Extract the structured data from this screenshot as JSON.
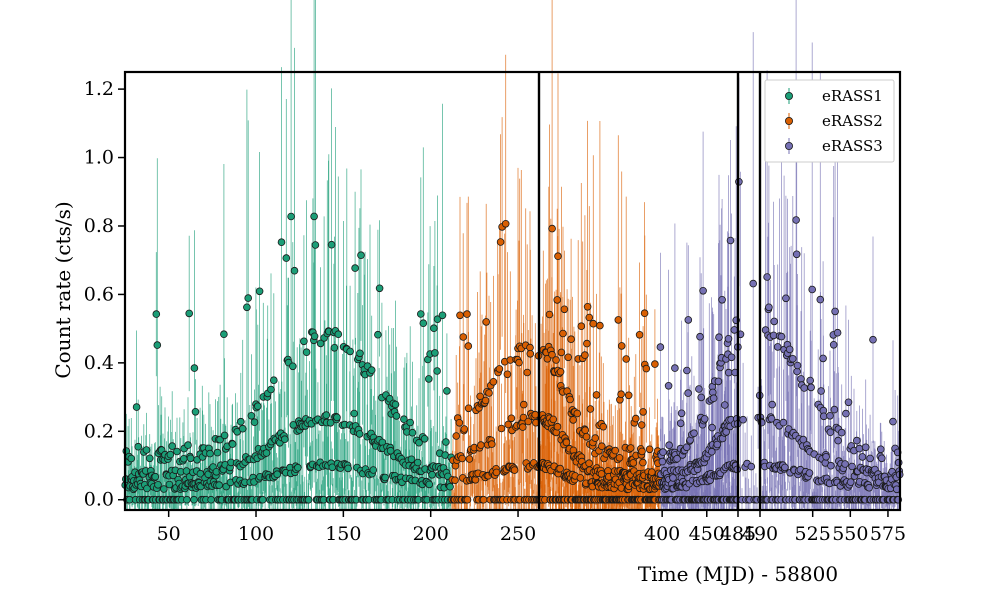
{
  "chart_data": {
    "type": "scatter",
    "title": "",
    "xlabel": "Time (MJD) - 58800",
    "ylabel": "Count rate (cts/s)",
    "ylim": [
      -0.03,
      1.25
    ],
    "yticks": [
      0.0,
      0.2,
      0.4,
      0.6,
      0.8,
      1.0,
      1.2
    ],
    "y_tick_labels": [
      "0.0",
      "0.2",
      "0.4",
      "0.6",
      "0.8",
      "1.0",
      "1.2"
    ],
    "broken_x_axis": true,
    "x_segments": [
      {
        "xlim": [
          25,
          262
        ],
        "ticks": [
          50,
          100,
          150,
          200,
          250
        ],
        "tick_labels": [
          "50",
          "100",
          "150",
          "200",
          "250"
        ]
      },
      {
        "xlim": [
          262,
          485
        ],
        "ticks": [
          400,
          450,
          485
        ],
        "tick_labels": [
          "400",
          "450",
          "485"
        ]
      },
      {
        "xlim": [
          485,
          490
        ],
        "ticks": [
          490
        ],
        "tick_labels": [
          "490"
        ]
      },
      {
        "xlim": [
          490,
          583
        ],
        "ticks": [
          525,
          550,
          575
        ],
        "tick_labels": [
          "525",
          "550",
          "575"
        ]
      }
    ],
    "segment_breaks": [
      262,
      485,
      490
    ],
    "legend_position": "top-right",
    "series": [
      {
        "name": "eRASS1",
        "color": "#1b9e77",
        "x_range": [
          25,
          212
        ],
        "peak_x": 140,
        "upper_peak": 0.48,
        "lower_peak": 0.24,
        "base": 0.02
      },
      {
        "name": "eRASS2",
        "color": "#d95f02",
        "x_range": [
          212,
          398
        ],
        "peak_x": 262,
        "upper_peak": 0.45,
        "lower_peak": 0.24,
        "base": 0.02
      },
      {
        "name": "eRASS3",
        "color": "#7570b3",
        "x_range": [
          398,
          583
        ],
        "peak_x": 490,
        "upper_peak": 0.5,
        "lower_peak": 0.24,
        "base": 0.02
      }
    ]
  }
}
